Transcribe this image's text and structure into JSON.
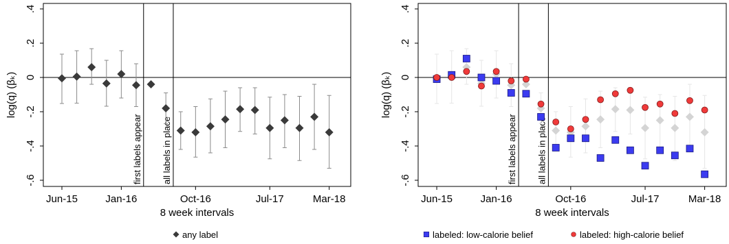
{
  "chart_data": [
    {
      "type": "scatter",
      "ylabel": "log(q) (βₖ)",
      "xlabel": "8 week intervals",
      "x": [
        0,
        1,
        2,
        3,
        4,
        5,
        6,
        7,
        8,
        9,
        10,
        11,
        12,
        13,
        14,
        15,
        16,
        17,
        18
      ],
      "xlim": [
        -1.25,
        19.45
      ],
      "xticks": [
        {
          "value": 0,
          "label": "Jun-15"
        },
        {
          "value": 4,
          "label": "Jan-16"
        },
        {
          "value": 9,
          "label": "Oct-16"
        },
        {
          "value": 14,
          "label": "Jul-17"
        },
        {
          "value": 18,
          "label": "Mar-18"
        }
      ],
      "ylim": [
        -0.636,
        0.432
      ],
      "yticks": [
        {
          "value": 0.4,
          "label": ".4"
        },
        {
          "value": 0.2,
          "label": ".2"
        },
        0,
        {
          "value": -0.2,
          "label": "-.2"
        },
        {
          "value": -0.4,
          "label": "-.4"
        },
        {
          "value": -0.6,
          "label": "-.6"
        }
      ],
      "hlines": [
        0
      ],
      "vlines": [
        {
          "x": 5.5,
          "label": "first labels appear"
        },
        {
          "x": 7.5,
          "label": "all labels in place"
        }
      ],
      "series": [
        {
          "name": "any label",
          "color": "#3a3a3a",
          "marker": "diamond",
          "ci_color": "#8a8a8a",
          "values": [
            -0.005,
            0.005,
            0.06,
            -0.035,
            0.02,
            -0.045,
            -0.04,
            -0.18,
            -0.31,
            -0.32,
            -0.285,
            -0.245,
            -0.185,
            -0.19,
            -0.295,
            -0.25,
            -0.295,
            -0.23,
            -0.32
          ],
          "ci_low": [
            -0.152,
            -0.15,
            -0.04,
            -0.168,
            -0.12,
            -0.17,
            null,
            -0.27,
            -0.42,
            -0.465,
            -0.44,
            -0.41,
            -0.315,
            -0.33,
            -0.475,
            -0.41,
            -0.485,
            -0.42,
            -0.53
          ],
          "ci_high": [
            0.136,
            0.156,
            0.168,
            0.1,
            0.156,
            0.08,
            null,
            -0.09,
            -0.2,
            -0.17,
            -0.125,
            -0.08,
            -0.06,
            -0.06,
            -0.115,
            -0.1,
            -0.11,
            -0.04,
            -0.105
          ]
        }
      ]
    },
    {
      "type": "scatter",
      "ylabel": "log(q) (βₖ)",
      "xlabel": "8 week intervals",
      "x": [
        0,
        1,
        2,
        3,
        4,
        5,
        6,
        7,
        8,
        9,
        10,
        11,
        12,
        13,
        14,
        15,
        16,
        17,
        18
      ],
      "xlim": [
        -1.25,
        19.45
      ],
      "xticks": [
        {
          "value": 0,
          "label": "Jun-15"
        },
        {
          "value": 4,
          "label": "Jan-16"
        },
        {
          "value": 9,
          "label": "Oct-16"
        },
        {
          "value": 14,
          "label": "Jul-17"
        },
        {
          "value": 18,
          "label": "Mar-18"
        }
      ],
      "ylim": [
        -0.636,
        0.432
      ],
      "yticks": [
        {
          "value": 0.4,
          "label": ".4"
        },
        {
          "value": 0.2,
          "label": ".2"
        },
        0,
        {
          "value": -0.2,
          "label": "-.2"
        },
        {
          "value": -0.4,
          "label": "-.4"
        },
        {
          "value": -0.6,
          "label": "-.6"
        }
      ],
      "hlines": [
        0
      ],
      "vlines": [
        {
          "x": 5.5,
          "label": "first labels appear"
        },
        {
          "x": 7.5,
          "label": "all labels in place"
        }
      ],
      "series": [
        {
          "color": "#d4d4d4",
          "marker": "diamond",
          "ci_color": "#e6e6e6",
          "values": [
            -0.005,
            0.005,
            0.06,
            -0.035,
            0.02,
            -0.045,
            -0.04,
            -0.18,
            -0.31,
            -0.32,
            -0.285,
            -0.245,
            -0.185,
            -0.19,
            -0.295,
            -0.25,
            -0.295,
            -0.23,
            -0.32
          ],
          "ci_low": [
            -0.152,
            -0.15,
            -0.04,
            -0.168,
            -0.12,
            -0.17,
            null,
            -0.27,
            -0.42,
            -0.465,
            -0.44,
            -0.41,
            -0.315,
            -0.33,
            -0.475,
            -0.41,
            -0.485,
            -0.42,
            -0.53
          ],
          "ci_high": [
            0.136,
            0.156,
            0.168,
            0.1,
            0.156,
            0.08,
            null,
            -0.09,
            -0.2,
            -0.17,
            -0.125,
            -0.08,
            -0.06,
            -0.06,
            -0.115,
            -0.1,
            -0.11,
            -0.04,
            -0.105
          ]
        },
        {
          "name": "labeled: low-calorie belief",
          "color": "#3b3bf0",
          "marker": "square",
          "values": [
            -0.01,
            0.015,
            0.11,
            0,
            -0.02,
            -0.09,
            -0.095,
            -0.23,
            -0.41,
            -0.355,
            -0.355,
            -0.47,
            -0.365,
            -0.425,
            -0.515,
            -0.425,
            -0.455,
            -0.415,
            -0.565
          ]
        },
        {
          "name": "labeled: high-calorie belief",
          "color": "#f03a3a",
          "marker": "circle",
          "values": [
            0,
            0,
            0.035,
            -0.05,
            0.035,
            -0.02,
            -0.01,
            -0.155,
            -0.26,
            -0.3,
            -0.245,
            -0.13,
            -0.095,
            -0.075,
            -0.175,
            -0.155,
            -0.21,
            -0.135,
            -0.19
          ]
        }
      ]
    }
  ]
}
